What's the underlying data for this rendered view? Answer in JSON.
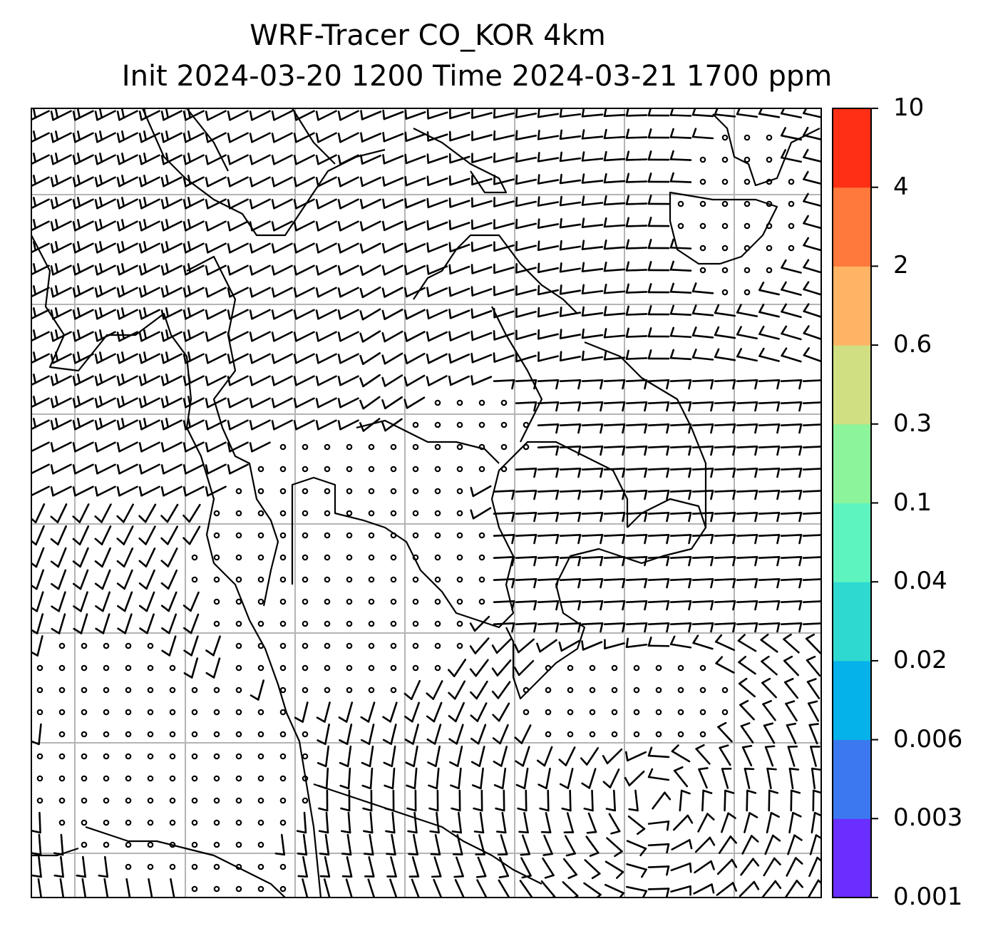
{
  "title": {
    "line1": "WRF-Tracer CO_KOR 4km",
    "line2": "Init 2024-03-20 1200 Time 2024-03-21 1700 ppm"
  },
  "colorbar": {
    "levels": [
      "0.001",
      "0.003",
      "0.006",
      "0.02",
      "0.04",
      "0.1",
      "0.3",
      "0.6",
      "2",
      "4",
      "10"
    ],
    "colors": [
      "#6a2eff",
      "#3c78f0",
      "#05b2ea",
      "#2ed9d0",
      "#5df4c0",
      "#8cf49a",
      "#d0df82",
      "#feb464",
      "#ff783c",
      "#ff2f16"
    ]
  },
  "map": {
    "gridlines": true,
    "features": [
      "coastlines",
      "wind-barbs",
      "calm-wind-circles"
    ],
    "wind_field": "cyclonic circulation with calm zones over central region"
  }
}
